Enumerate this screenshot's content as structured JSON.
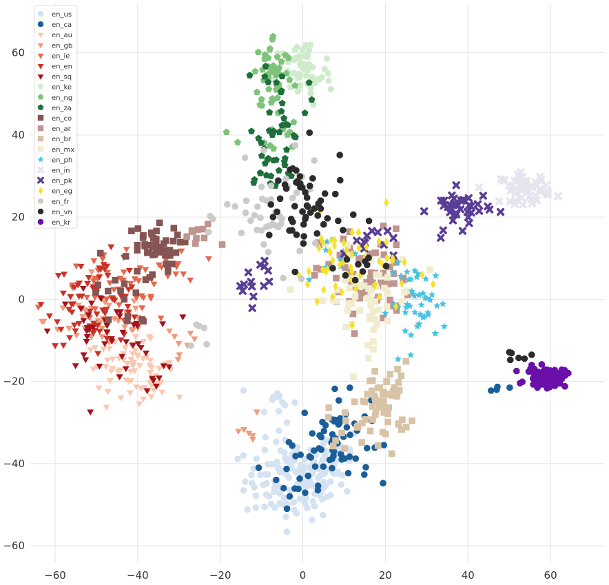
{
  "chart_data": {
    "type": "scatter",
    "title": "",
    "xlabel": "",
    "ylabel": "",
    "xlim": [
      -66,
      73
    ],
    "ylim": [
      -64,
      72
    ],
    "x_ticks": [
      -60,
      -40,
      -20,
      0,
      20,
      40,
      60
    ],
    "y_ticks": [
      -60,
      -40,
      -20,
      0,
      20,
      40,
      60
    ],
    "x_tick_labels": [
      "−60",
      "−40",
      "−20",
      "0",
      "20",
      "40",
      "60"
    ],
    "y_tick_labels": [
      "−60",
      "−40",
      "−20",
      "0",
      "20",
      "40",
      "60"
    ],
    "grid": true,
    "legend_position": "top-left",
    "series": [
      {
        "name": "en_us",
        "color": "#d4e2f1",
        "marker": "circle",
        "clusters": [
          [
            -2,
            -44,
            10,
            8,
            140
          ],
          [
            8,
            -38,
            5,
            6,
            30
          ],
          [
            -6,
            -25,
            4,
            4,
            12
          ]
        ]
      },
      {
        "name": "en_ca",
        "color": "#1a5e99",
        "marker": "circle",
        "clusters": [
          [
            8,
            -34,
            7,
            9,
            60
          ],
          [
            -2,
            -42,
            5,
            7,
            15
          ],
          [
            48,
            -22,
            2,
            1,
            4
          ]
        ]
      },
      {
        "name": "en_au",
        "color": "#fbc8b0",
        "marker": "triangle",
        "clusters": [
          [
            -42,
            -16,
            9,
            5,
            60
          ],
          [
            -36,
            -22,
            3,
            3,
            15
          ]
        ]
      },
      {
        "name": "en_gb",
        "color": "#f19a7c",
        "marker": "triangle",
        "clusters": [
          [
            -48,
            -5,
            12,
            6,
            45
          ],
          [
            -14,
            -32,
            3,
            5,
            6
          ],
          [
            -30,
            -12,
            4,
            5,
            8
          ]
        ]
      },
      {
        "name": "en_ie",
        "color": "#e5684d",
        "marker": "triangle",
        "clusters": [
          [
            -45,
            2,
            12,
            7,
            45
          ],
          [
            -30,
            8,
            5,
            5,
            12
          ]
        ]
      },
      {
        "name": "en_en",
        "color": "#c93127",
        "marker": "triangle",
        "clusters": [
          [
            -50,
            0,
            10,
            9,
            70
          ]
        ]
      },
      {
        "name": "en_sq",
        "color": "#a3131c",
        "marker": "triangle",
        "clusters": [
          [
            -48,
            -8,
            10,
            8,
            45
          ],
          [
            -36,
            -20,
            3,
            3,
            6
          ]
        ]
      },
      {
        "name": "en_ke",
        "color": "#cfebcb",
        "marker": "pentagon",
        "clusters": [
          [
            0,
            55,
            6,
            7,
            60
          ]
        ]
      },
      {
        "name": "en_ng",
        "color": "#7dc47a",
        "marker": "pentagon",
        "clusters": [
          [
            -7,
            55,
            4,
            8,
            50
          ],
          [
            -8,
            40,
            6,
            5,
            15
          ]
        ]
      },
      {
        "name": "en_za",
        "color": "#1e6f3b",
        "marker": "pentagon",
        "clusters": [
          [
            -5,
            48,
            5,
            10,
            30
          ],
          [
            -8,
            31,
            6,
            5,
            20
          ]
        ]
      },
      {
        "name": "en_co",
        "color": "#845552",
        "marker": "square",
        "clusters": [
          [
            -37,
            13,
            6,
            4,
            40
          ],
          [
            -42,
            2,
            7,
            8,
            20
          ]
        ]
      },
      {
        "name": "en_ar",
        "color": "#c09590",
        "marker": "square",
        "clusters": [
          [
            15,
            5,
            9,
            10,
            70
          ],
          [
            -25,
            15,
            4,
            3,
            10
          ]
        ]
      },
      {
        "name": "en_br",
        "color": "#d9c3a6",
        "marker": "square",
        "clusters": [
          [
            20,
            -25,
            5,
            8,
            55
          ],
          [
            12,
            -30,
            5,
            5,
            15
          ]
        ]
      },
      {
        "name": "en_mx",
        "color": "#f0eccd",
        "marker": "square",
        "clusters": [
          [
            15,
            0,
            10,
            10,
            60
          ]
        ]
      },
      {
        "name": "en_ph",
        "color": "#46c2e2",
        "marker": "star",
        "clusters": [
          [
            28,
            -1,
            6,
            8,
            45
          ],
          [
            10,
            10,
            5,
            5,
            10
          ]
        ]
      },
      {
        "name": "en_in",
        "color": "#e6e5ef",
        "marker": "x",
        "clusters": [
          [
            54,
            27,
            5,
            3,
            55
          ]
        ]
      },
      {
        "name": "en_pk",
        "color": "#5a3d96",
        "marker": "x",
        "clusters": [
          [
            38,
            22,
            6,
            4,
            40
          ],
          [
            -12,
            5,
            4,
            5,
            14
          ],
          [
            16,
            14,
            5,
            4,
            12
          ]
        ]
      },
      {
        "name": "en_eg",
        "color": "#f7e12a",
        "marker": "diamond",
        "clusters": [
          [
            12,
            8,
            12,
            10,
            55
          ]
        ]
      },
      {
        "name": "en_fr",
        "color": "#cbcbcb",
        "marker": "circle",
        "clusters": [
          [
            -7,
            20,
            10,
            10,
            45
          ],
          [
            -25,
            -8,
            3,
            4,
            5
          ]
        ]
      },
      {
        "name": "en_vn",
        "color": "#2b2b2b",
        "marker": "octagon",
        "clusters": [
          [
            0,
            22,
            9,
            12,
            55
          ],
          [
            14,
            8,
            5,
            4,
            10
          ],
          [
            52,
            -14,
            3,
            1,
            6
          ]
        ]
      },
      {
        "name": "en_kr",
        "color": "#6a0fa8",
        "marker": "octagon",
        "clusters": [
          [
            59,
            -19,
            4,
            2,
            75
          ]
        ]
      }
    ]
  }
}
